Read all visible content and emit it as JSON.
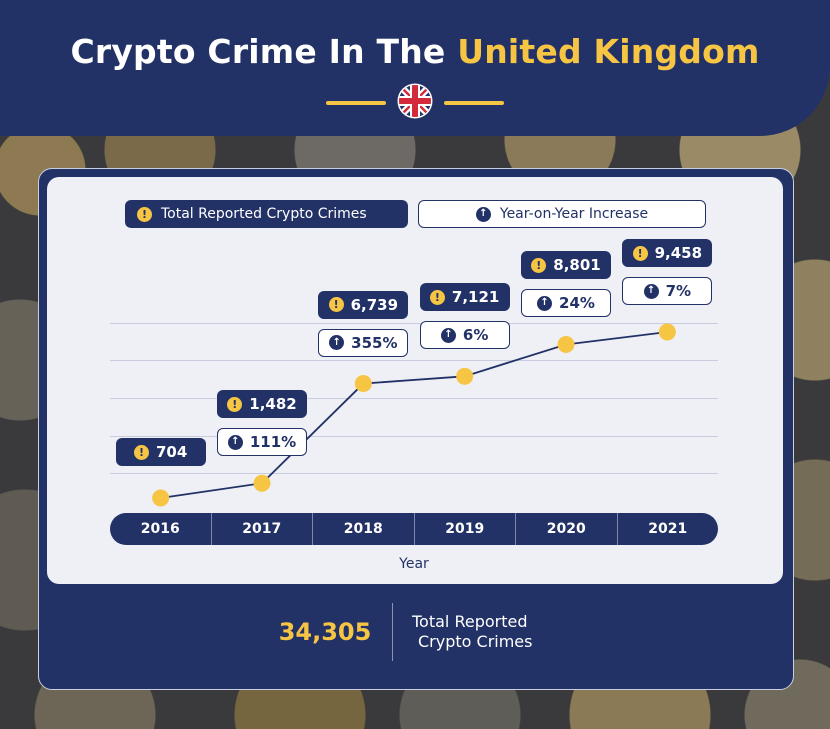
{
  "header": {
    "title_main": "Crypto Crime In The ",
    "title_accent": "United Kingdom",
    "flag_icon": "union-jack-flag-icon"
  },
  "legend": {
    "total_label": "Total Reported Crypto Crimes",
    "increase_label": "Year-on-Year Increase"
  },
  "chart_data": {
    "type": "line",
    "x": [
      "2016",
      "2017",
      "2018",
      "2019",
      "2020",
      "2021"
    ],
    "series": [
      {
        "name": "Total Reported Crypto Crimes",
        "values": [
          704,
          1482,
          6739,
          7121,
          8801,
          9458
        ],
        "labels": [
          "704",
          "1,482",
          "6,739",
          "7,121",
          "8,801",
          "9,458"
        ]
      },
      {
        "name": "Year-on-Year Increase",
        "values": [
          null,
          111,
          355,
          6,
          24,
          7
        ],
        "labels": [
          "",
          "111%",
          "355%",
          "6%",
          "24%",
          "7%"
        ]
      }
    ],
    "xlabel": "Year",
    "ylabel": "",
    "grid": true
  },
  "colors": {
    "navy": "#233266",
    "gold": "#f6c544"
  },
  "summary": {
    "total_value": "34,305",
    "total_label_line1": "Total Reported",
    "total_label_line2": "Crypto Crimes"
  }
}
